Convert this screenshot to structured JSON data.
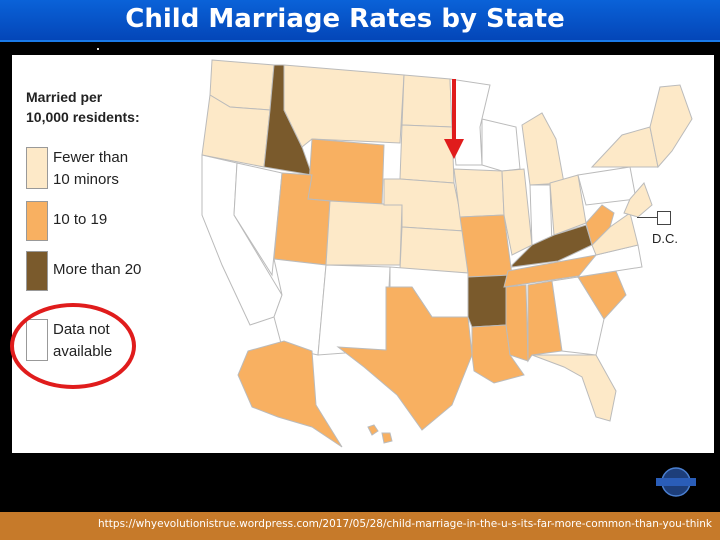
{
  "title": "Child Marriage Rates by State",
  "legend": {
    "title_line1": "Married per",
    "title_line2": "10,000 residents:",
    "items": [
      {
        "line1": "Fewer than",
        "line2": "10 minors",
        "color": "#fde9c8"
      },
      {
        "line1": "10 to 19",
        "line2": "",
        "color": "#f8b061"
      },
      {
        "line1": "More than 20",
        "line2": "",
        "color": "#7a5a2c"
      },
      {
        "line1": "Data not",
        "line2": "available",
        "color": "#ffffff"
      }
    ]
  },
  "dc_label": "D.C.",
  "source_url": "https://whyevolutionistrue.wordpress.com/2017/05/28/child-marriage-in-the-u-s-its-far-more-common-than-you-think",
  "colors": {
    "low": "#fde9c8",
    "mid": "#f8b061",
    "high": "#7a5a2c",
    "na": "#ffffff",
    "arrow": "#e01c1c",
    "title_bar": "#0a55cc",
    "footer": "#c67a2a"
  }
}
